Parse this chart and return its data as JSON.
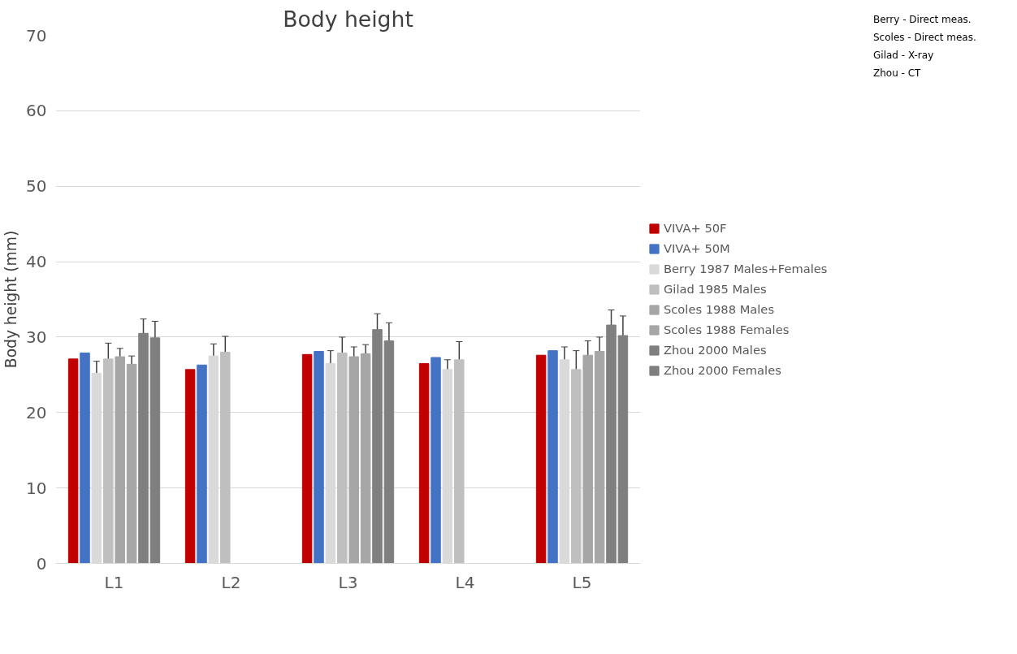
{
  "chart_data": {
    "type": "bar",
    "title": "Body height",
    "ylabel": "Body height (mm)",
    "categories": [
      "L1",
      "L2",
      "L3",
      "L4",
      "L5"
    ],
    "series": [
      {
        "name": "VIVA+ 50F",
        "color": "#c00000",
        "values": [
          27.1,
          25.7,
          27.7,
          26.5,
          27.6
        ]
      },
      {
        "name": "VIVA+ 50M",
        "color": "#4472c4",
        "values": [
          27.9,
          26.3,
          28.1,
          27.3,
          28.2
        ]
      },
      {
        "name": "Berry 1987 Males+Females",
        "color": "#d9d9d9",
        "values": [
          25.2,
          27.5,
          26.5,
          25.7,
          27.0
        ],
        "errors": [
          1.6,
          1.6,
          1.7,
          1.3,
          1.7
        ]
      },
      {
        "name": "Gilad 1985 Males",
        "color": "#bfbfbf",
        "values": [
          27.1,
          28.0,
          27.9,
          27.0,
          25.7
        ],
        "errors": [
          2.1,
          2.1,
          2.1,
          2.4,
          2.5
        ]
      },
      {
        "name": "Scoles 1988 Males",
        "color": "#a6a6a6",
        "values": [
          27.4,
          null,
          27.4,
          null,
          27.6
        ],
        "errors": [
          1.1,
          null,
          1.3,
          null,
          1.9
        ]
      },
      {
        "name": "Scoles 1988 Females",
        "color": "#a6a6a6",
        "values": [
          26.4,
          null,
          27.8,
          null,
          28.1
        ],
        "errors": [
          1.1,
          null,
          1.2,
          null,
          1.9
        ]
      },
      {
        "name": "Zhou 2000 Males",
        "color": "#7f7f7f",
        "values": [
          30.5,
          null,
          31.0,
          null,
          31.6
        ],
        "errors": [
          1.9,
          null,
          2.1,
          null,
          2.0
        ]
      },
      {
        "name": "Zhou 2000 Females",
        "color": "#7f7f7f",
        "values": [
          29.9,
          null,
          29.5,
          null,
          30.2
        ],
        "errors": [
          2.2,
          null,
          2.4,
          null,
          2.6
        ]
      }
    ],
    "ylim": [
      0,
      70
    ],
    "yticks": [
      0,
      10,
      20,
      30,
      40,
      50,
      60,
      70
    ],
    "grid": "y",
    "legend": "right",
    "annotations": [
      "Berry - Direct meas.",
      "Scoles - Direct meas.",
      "Gilad - X-ray",
      "Zhou - CT"
    ]
  }
}
